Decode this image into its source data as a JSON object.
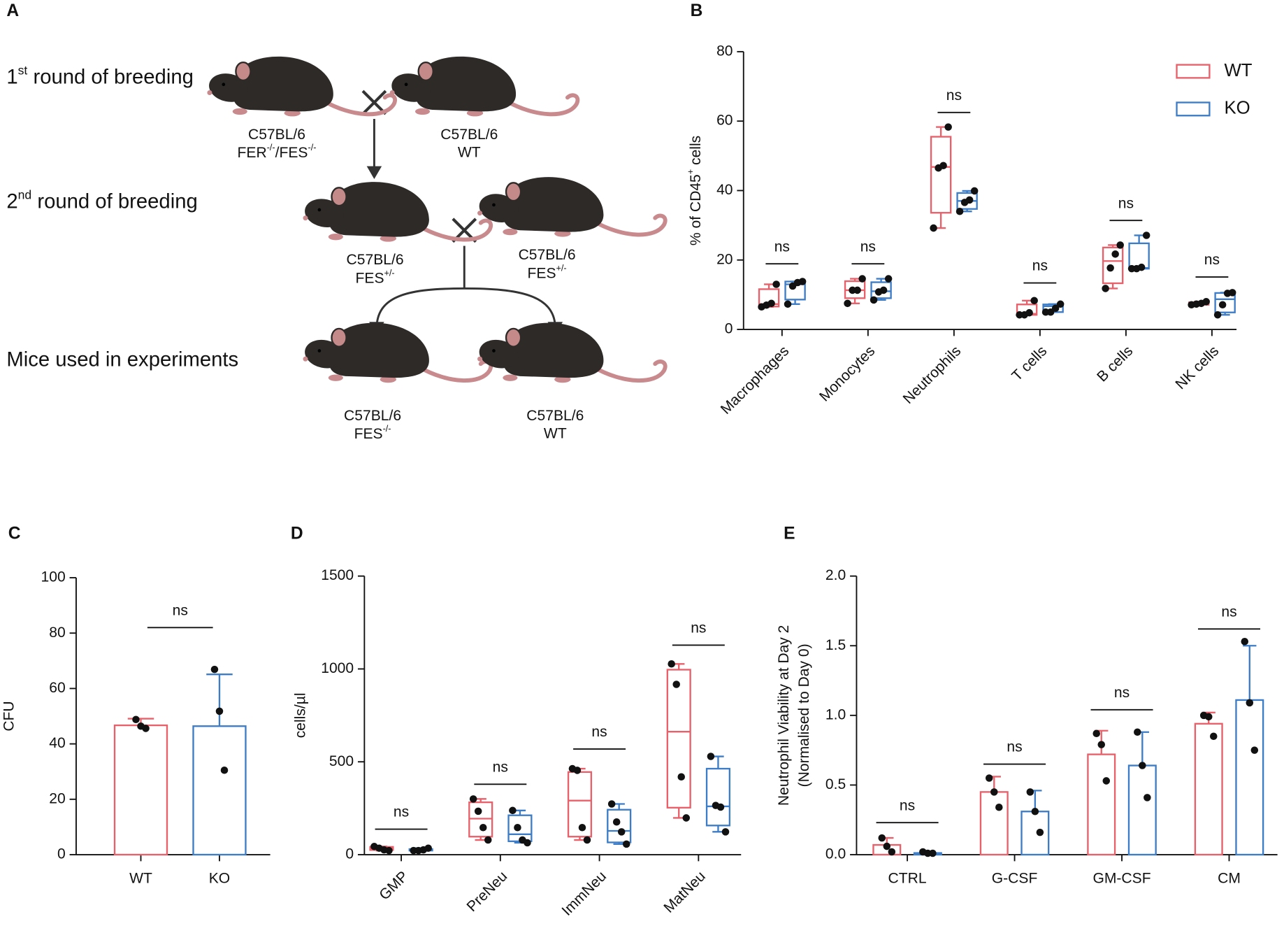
{
  "diagram": {
    "panel": "A",
    "rows": [
      [
        "1",
        "st",
        " round of breeding"
      ],
      [
        "2",
        "nd",
        " round of breeding"
      ],
      [
        "Mice used in experiments"
      ]
    ],
    "mice": [
      {
        "lines": [
          "C57BL/6",
          [
            "FER",
            "-/-",
            "/FES",
            "-/-"
          ]
        ]
      },
      {
        "lines": [
          "C57BL/6",
          "WT"
        ]
      },
      {
        "lines": [
          "C57BL/6",
          [
            "FES",
            "+/-"
          ]
        ]
      },
      {
        "lines": [
          "C57BL/6",
          [
            "FES",
            "+/-"
          ]
        ]
      },
      {
        "lines": [
          "C57BL/6",
          [
            "FES",
            "-/-"
          ]
        ]
      },
      {
        "lines": [
          "C57BL/6",
          "WT"
        ]
      }
    ]
  },
  "chart_data": [
    {
      "type": "box",
      "panel": "B",
      "ylabel": [
        "% of CD45",
        "+",
        " cells"
      ],
      "categories": [
        "Macrophages",
        "Monocytes",
        "Neutrophils",
        "T cells",
        "B cells",
        "NK cells"
      ],
      "ylim": [
        0,
        80
      ],
      "yticks": [
        0,
        20,
        40,
        60,
        80
      ],
      "legend": "upper right",
      "series": [
        {
          "name": "WT",
          "color": "#e8606a",
          "boxes": [
            [
              6.5,
              6.6,
              7.3,
              11.6,
              13.0
            ],
            [
              7.5,
              9.0,
              11.3,
              13.9,
              14.6
            ],
            [
              29.2,
              33.6,
              46.8,
              55.5,
              58.3
            ],
            [
              4.2,
              4.2,
              4.5,
              7.2,
              8.3
            ],
            [
              11.8,
              13.3,
              19.7,
              23.6,
              24.3
            ],
            [
              7.1,
              7.1,
              7.4,
              7.8,
              8.0
            ]
          ],
          "points": [
            [
              6.5,
              7.0,
              7.5,
              13.0
            ],
            [
              7.5,
              11.3,
              11.3,
              14.6
            ],
            [
              29.2,
              46.5,
              47.2,
              58.3
            ],
            [
              4.2,
              4.2,
              4.8,
              8.3
            ],
            [
              11.8,
              17.7,
              21.7,
              24.3
            ],
            [
              7.1,
              7.3,
              7.5,
              8.0
            ]
          ]
        },
        {
          "name": "KO",
          "color": "#3d7cc6",
          "boxes": [
            [
              7.3,
              8.6,
              13.0,
              13.8,
              13.8
            ],
            [
              8.5,
              9.0,
              11.0,
              13.6,
              14.6
            ],
            [
              34.0,
              34.7,
              37.0,
              39.3,
              39.9
            ],
            [
              5.0,
              5.0,
              6.7,
              7.2,
              7.3
            ],
            [
              17.5,
              17.5,
              17.7,
              24.8,
              27.1
            ],
            [
              4.2,
              4.9,
              8.7,
              10.5,
              10.6
            ]
          ],
          "points": [
            [
              7.3,
              12.5,
              13.5,
              13.8
            ],
            [
              8.5,
              10.8,
              11.3,
              14.6
            ],
            [
              34.0,
              36.6,
              37.3,
              39.9
            ],
            [
              5.0,
              5.0,
              6.1,
              7.3
            ],
            [
              17.5,
              17.5,
              17.9,
              27.1
            ],
            [
              4.2,
              7.1,
              10.4,
              10.6
            ]
          ]
        }
      ],
      "annotations": [
        {
          "text": "ns",
          "y": 18.9
        },
        {
          "text": "ns",
          "y": 18.9
        },
        {
          "text": "ns",
          "y": 62.5
        },
        {
          "text": "ns",
          "y": 13.4
        },
        {
          "text": "ns",
          "y": 31.4
        },
        {
          "text": "ns",
          "y": 15.1
        }
      ]
    },
    {
      "type": "bar",
      "panel": "C",
      "ylabel": "CFU",
      "categories": [
        "WT",
        "KO"
      ],
      "values": [
        46.7,
        46.4
      ],
      "errors": [
        2.4,
        18.7
      ],
      "colors": [
        "#e8606a",
        "#3d7cc6"
      ],
      "points": [
        [
          48.8,
          46.4,
          45.6
        ],
        [
          66.9,
          51.8,
          30.5
        ]
      ],
      "ylim": [
        0,
        100
      ],
      "yticks": [
        0,
        20,
        40,
        60,
        80,
        100
      ],
      "annotations": [
        {
          "text": "ns",
          "y": 82
        }
      ]
    },
    {
      "type": "box",
      "panel": "D",
      "ylabel": "cells/µl",
      "categories": [
        "GMP",
        "PreNeu",
        "ImmNeu",
        "MatNeu"
      ],
      "ylim": [
        0,
        1500
      ],
      "yticks": [
        0,
        500,
        1000,
        1500
      ],
      "series": [
        {
          "color": "#e8606a",
          "boxes": [
            [
              22,
              25,
              33,
              42,
              44
            ],
            [
              79,
              97,
              194,
              282,
              300
            ],
            [
              79,
              97,
              291,
              445,
              463
            ],
            [
              198,
              253,
              662,
              996,
              1027
            ]
          ],
          "points": [
            [
              44,
              35,
              26,
              22
            ],
            [
              300,
              234,
              146,
              79
            ],
            [
              463,
              454,
              146,
              79
            ],
            [
              1027,
              917,
              419,
              198
            ]
          ]
        },
        {
          "color": "#3d7cc6",
          "boxes": [
            [
              20,
              22,
              24,
              30,
              35
            ],
            [
              64,
              72,
              110,
              212,
              238
            ],
            [
              57,
              66,
              128,
              242,
              273
            ],
            [
              123,
              157,
              260,
              463,
              529
            ]
          ],
          "points": [
            [
              22,
              22,
              26,
              35
            ],
            [
              238,
              146,
              79,
              64
            ],
            [
              273,
              176,
              123,
              57
            ],
            [
              529,
              265,
              256,
              123
            ]
          ]
        }
      ],
      "annotations": [
        {
          "text": "ns",
          "y": 137
        },
        {
          "text": "ns",
          "y": 379
        },
        {
          "text": "ns",
          "y": 569
        },
        {
          "text": "ns",
          "y": 1128
        }
      ]
    },
    {
      "type": "bar",
      "panel": "E",
      "ylabel": "Neutrophil Viability at Day 2",
      "ylabel_sub": "(Normalised to Day 0)",
      "categories": [
        "CTRL",
        "G-CSF",
        "GM-CSF",
        "CM"
      ],
      "ylim": [
        0,
        2.0
      ],
      "yticks": [
        {
          "value": 0,
          "label": "0.0"
        },
        0.5,
        {
          "value": 1,
          "label": "1.0"
        },
        1.5,
        {
          "value": 2,
          "label": "2.0"
        }
      ],
      "series": [
        {
          "color": "#e8606a",
          "values": [
            0.07,
            0.45,
            0.72,
            0.94
          ],
          "errors": [
            0.05,
            0.11,
            0.17,
            0.08
          ],
          "points": [
            [
              0.12,
              0.06,
              0.02
            ],
            [
              0.55,
              0.45,
              0.34
            ],
            [
              0.87,
              0.79,
              0.53
            ],
            [
              1.0,
              0.99,
              0.85
            ]
          ]
        },
        {
          "color": "#3d7cc6",
          "values": [
            0.012,
            0.31,
            0.64,
            1.11
          ],
          "errors": [
            0.005,
            0.15,
            0.24,
            0.39
          ],
          "points": [
            [
              0.02,
              0.01,
              0.01
            ],
            [
              0.45,
              0.31,
              0.16
            ],
            [
              0.88,
              0.64,
              0.41
            ],
            [
              1.53,
              1.09,
              0.75
            ]
          ]
        }
      ],
      "annotations": [
        {
          "text": "ns",
          "y": 0.23
        },
        {
          "text": "ns",
          "y": 0.65
        },
        {
          "text": "ns",
          "y": 1.04
        },
        {
          "text": "ns",
          "y": 1.62
        }
      ]
    }
  ]
}
